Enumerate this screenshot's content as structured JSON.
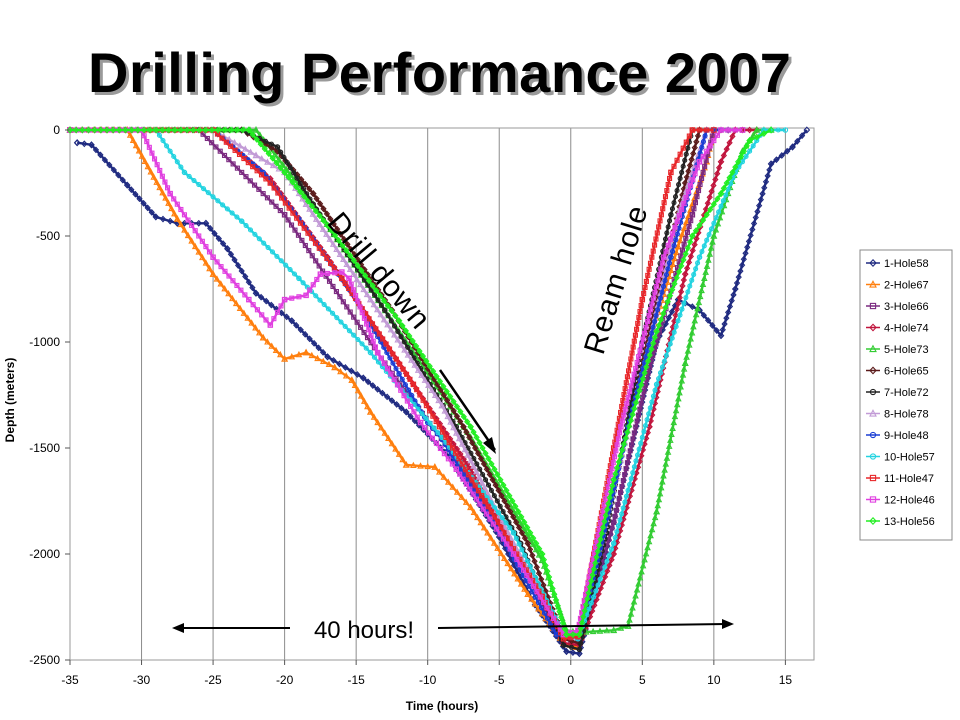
{
  "title": "Drilling Performance 2007",
  "chart_data": {
    "type": "line",
    "title": "Drilling Performance 2007",
    "xlabel": "Time (hours)",
    "ylabel": "Depth (meters)",
    "xlim": [
      -35,
      17
    ],
    "ylim": [
      -2500,
      0
    ],
    "xticks": [
      -35,
      -30,
      -25,
      -20,
      -15,
      -10,
      -5,
      0,
      5,
      10,
      15
    ],
    "yticks": [
      0,
      -500,
      -1000,
      -1500,
      -2000,
      -2500
    ],
    "grid": "vertical",
    "legend_position": "right",
    "annotations": [
      {
        "text": "Drill down",
        "kind": "arrow-label"
      },
      {
        "text": "Ream hole",
        "kind": "label"
      },
      {
        "text": "40 hours!",
        "kind": "double-arrow-label"
      }
    ],
    "series": [
      {
        "name": "1-Hole58",
        "color": "#1f2a80",
        "marker": "diamond",
        "points": [
          [
            -34.5,
            -60
          ],
          [
            -33.5,
            -70
          ],
          [
            -31,
            -260
          ],
          [
            -29,
            -410
          ],
          [
            -27.5,
            -440
          ],
          [
            -25.5,
            -440
          ],
          [
            -24,
            -560
          ],
          [
            -22,
            -770
          ],
          [
            -19.5,
            -900
          ],
          [
            -17,
            -1070
          ],
          [
            -14.5,
            -1170
          ],
          [
            -11.5,
            -1330
          ],
          [
            -8.5,
            -1540
          ],
          [
            -5,
            -1920
          ],
          [
            -2.5,
            -2240
          ],
          [
            -0.3,
            -2460
          ],
          [
            0.6,
            -2470
          ],
          [
            3,
            -1850
          ],
          [
            6,
            -1000
          ],
          [
            7.5,
            -800
          ],
          [
            9,
            -850
          ],
          [
            10.5,
            -970
          ],
          [
            11.5,
            -750
          ],
          [
            14,
            -160
          ],
          [
            15.5,
            -80
          ],
          [
            16.5,
            0
          ]
        ]
      },
      {
        "name": "2-Hole67",
        "color": "#ff7f0e",
        "marker": "triangle",
        "points": [
          [
            -35,
            0
          ],
          [
            -31,
            0
          ],
          [
            -27.5,
            -420
          ],
          [
            -25,
            -680
          ],
          [
            -21.5,
            -980
          ],
          [
            -20,
            -1080
          ],
          [
            -18.5,
            -1050
          ],
          [
            -16.5,
            -1120
          ],
          [
            -15.3,
            -1180
          ],
          [
            -14,
            -1330
          ],
          [
            -11.5,
            -1580
          ],
          [
            -9.5,
            -1590
          ],
          [
            -7,
            -1780
          ],
          [
            -3,
            -2190
          ],
          [
            -0.5,
            -2420
          ],
          [
            0.4,
            -2440
          ],
          [
            2.5,
            -1800
          ],
          [
            5.5,
            -1000
          ],
          [
            7.5,
            -550
          ],
          [
            9.5,
            -150
          ],
          [
            10,
            0
          ]
        ]
      },
      {
        "name": "3-Hole66",
        "color": "#7b2a80",
        "marker": "square",
        "points": [
          [
            -35,
            0
          ],
          [
            -26,
            0
          ],
          [
            -20,
            -400
          ],
          [
            -13,
            -1100
          ],
          [
            -8,
            -1550
          ],
          [
            -3,
            -2100
          ],
          [
            -0.5,
            -2400
          ],
          [
            0.5,
            -2420
          ],
          [
            3,
            -1850
          ],
          [
            5.5,
            -1120
          ],
          [
            8.5,
            -400
          ],
          [
            10,
            0
          ],
          [
            12,
            0
          ]
        ]
      },
      {
        "name": "4-Hole74",
        "color": "#c0143c",
        "marker": "diamond",
        "points": [
          [
            -35,
            0
          ],
          [
            -25,
            0
          ],
          [
            -21,
            -230
          ],
          [
            -17,
            -600
          ],
          [
            -12,
            -1100
          ],
          [
            -7,
            -1600
          ],
          [
            -3,
            -2100
          ],
          [
            -0.5,
            -2420
          ],
          [
            0.6,
            -2430
          ],
          [
            3,
            -2000
          ],
          [
            5.5,
            -1400
          ],
          [
            8,
            -680
          ],
          [
            10.5,
            -150
          ],
          [
            11.5,
            0
          ],
          [
            13,
            0
          ]
        ]
      },
      {
        "name": "5-Hole73",
        "color": "#33cc33",
        "marker": "triangle",
        "points": [
          [
            -35,
            0
          ],
          [
            -22,
            0
          ],
          [
            -18,
            -350
          ],
          [
            -12.5,
            -900
          ],
          [
            -7,
            -1450
          ],
          [
            -2,
            -2030
          ],
          [
            -0.3,
            -2360
          ],
          [
            0.6,
            -2370
          ],
          [
            3,
            -2360
          ],
          [
            4,
            -2340
          ],
          [
            6,
            -1800
          ],
          [
            8,
            -1100
          ],
          [
            10,
            -500
          ],
          [
            12,
            -100
          ],
          [
            13,
            0
          ],
          [
            14,
            0
          ]
        ]
      },
      {
        "name": "6-Hole65",
        "color": "#5a1a1a",
        "marker": "diamond",
        "points": [
          [
            -35,
            0
          ],
          [
            -23,
            0
          ],
          [
            -20.5,
            -100
          ],
          [
            -18,
            -300
          ],
          [
            -12.5,
            -850
          ],
          [
            -7.5,
            -1400
          ],
          [
            -3,
            -1950
          ],
          [
            -0.5,
            -2400
          ],
          [
            0.6,
            -2420
          ],
          [
            3,
            -1700
          ],
          [
            5.5,
            -950
          ],
          [
            8,
            -250
          ],
          [
            9,
            0
          ],
          [
            11,
            0
          ]
        ]
      },
      {
        "name": "7-Hole72",
        "color": "#222222",
        "marker": "circle",
        "points": [
          [
            -35,
            0
          ],
          [
            -23,
            0
          ],
          [
            -20.5,
            -80
          ],
          [
            -18,
            -350
          ],
          [
            -13,
            -850
          ],
          [
            -8,
            -1400
          ],
          [
            -3.5,
            -1950
          ],
          [
            -0.5,
            -2430
          ],
          [
            0.6,
            -2450
          ],
          [
            2.5,
            -1900
          ],
          [
            5,
            -1000
          ],
          [
            7,
            -400
          ],
          [
            8.5,
            0
          ],
          [
            10,
            0
          ]
        ]
      },
      {
        "name": "8-Hole78",
        "color": "#c29bd6",
        "marker": "triangle",
        "points": [
          [
            -35,
            0
          ],
          [
            -25,
            0
          ],
          [
            -22,
            -120
          ],
          [
            -20,
            -200
          ],
          [
            -18.5,
            -350
          ],
          [
            -14,
            -800
          ],
          [
            -9,
            -1300
          ],
          [
            -4,
            -1950
          ],
          [
            -0.5,
            -2380
          ],
          [
            0.5,
            -2390
          ],
          [
            3,
            -1700
          ],
          [
            5.5,
            -1000
          ],
          [
            7.5,
            -400
          ],
          [
            9.5,
            0
          ],
          [
            11,
            0
          ]
        ]
      },
      {
        "name": "9-Hole48",
        "color": "#1a3ed4",
        "marker": "circle",
        "points": [
          [
            -35,
            0
          ],
          [
            -25,
            0
          ],
          [
            -21.5,
            -200
          ],
          [
            -19,
            -420
          ],
          [
            -15,
            -800
          ],
          [
            -12,
            -1150
          ],
          [
            -10,
            -1380
          ],
          [
            -9,
            -1460
          ],
          [
            -5,
            -1900
          ],
          [
            -1,
            -2380
          ],
          [
            0.5,
            -2400
          ],
          [
            2,
            -2000
          ],
          [
            4,
            -1400
          ],
          [
            7,
            -600
          ],
          [
            9.5,
            0
          ],
          [
            11,
            0
          ]
        ]
      },
      {
        "name": "10-Hole57",
        "color": "#22d3e0",
        "marker": "circle",
        "points": [
          [
            -35,
            0
          ],
          [
            -29,
            0
          ],
          [
            -27,
            -200
          ],
          [
            -23,
            -430
          ],
          [
            -19,
            -700
          ],
          [
            -14,
            -1050
          ],
          [
            -9,
            -1450
          ],
          [
            -4,
            -1900
          ],
          [
            -0.5,
            -2380
          ],
          [
            0.5,
            -2400
          ],
          [
            3,
            -1950
          ],
          [
            6,
            -1200
          ],
          [
            9,
            -600
          ],
          [
            11.5,
            -200
          ],
          [
            13.5,
            0
          ],
          [
            15,
            0
          ]
        ]
      },
      {
        "name": "11-Hole47",
        "color": "#e8272a",
        "marker": "square",
        "points": [
          [
            -35,
            0
          ],
          [
            -25,
            0
          ],
          [
            -21,
            -250
          ],
          [
            -16,
            -700
          ],
          [
            -11,
            -1200
          ],
          [
            -6,
            -1750
          ],
          [
            -2,
            -2200
          ],
          [
            -0.5,
            -2400
          ],
          [
            0.5,
            -2390
          ],
          [
            3,
            -1500
          ],
          [
            5,
            -800
          ],
          [
            7,
            -200
          ],
          [
            8.5,
            0
          ],
          [
            10,
            0
          ]
        ]
      },
      {
        "name": "12-Hole46",
        "color": "#e040e0",
        "marker": "square",
        "points": [
          [
            -35,
            0
          ],
          [
            -30,
            0
          ],
          [
            -28,
            -300
          ],
          [
            -25,
            -600
          ],
          [
            -22.5,
            -800
          ],
          [
            -21,
            -920
          ],
          [
            -20,
            -800
          ],
          [
            -18.5,
            -780
          ],
          [
            -17.5,
            -680
          ],
          [
            -16,
            -670
          ],
          [
            -15.5,
            -700
          ],
          [
            -13.5,
            -1050
          ],
          [
            -10.5,
            -1380
          ],
          [
            -8,
            -1600
          ],
          [
            -4,
            -2000
          ],
          [
            -0.5,
            -2380
          ],
          [
            0.5,
            -2360
          ],
          [
            3.5,
            -1400
          ],
          [
            6.5,
            -600
          ],
          [
            9,
            -150
          ],
          [
            10.5,
            0
          ],
          [
            12,
            0
          ]
        ]
      },
      {
        "name": "13-Hole56",
        "color": "#22ee22",
        "marker": "diamond",
        "points": [
          [
            -35,
            0
          ],
          [
            -22.5,
            0
          ],
          [
            -20,
            -200
          ],
          [
            -17,
            -450
          ],
          [
            -12,
            -900
          ],
          [
            -7,
            -1400
          ],
          [
            -2,
            -2000
          ],
          [
            -0.3,
            -2380
          ],
          [
            0.6,
            -2380
          ],
          [
            3,
            -1650
          ],
          [
            6,
            -950
          ],
          [
            8.5,
            -500
          ],
          [
            10.5,
            -300
          ],
          [
            12.5,
            -50
          ],
          [
            14,
            0
          ]
        ]
      }
    ]
  }
}
